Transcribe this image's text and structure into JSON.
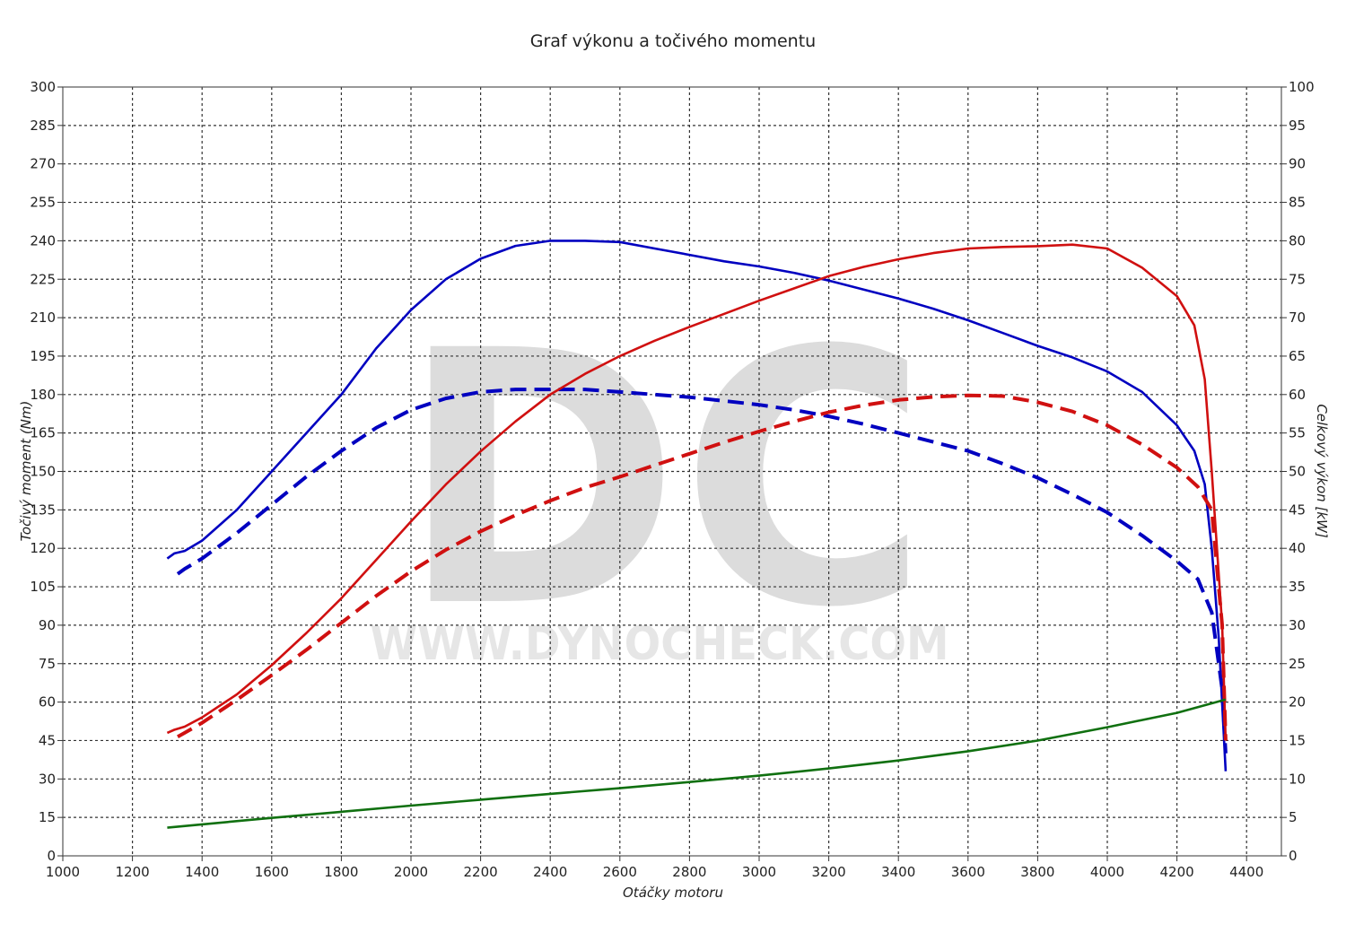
{
  "chart_data": {
    "type": "line",
    "title": "Graf výkonu a točivého momentu",
    "xlabel": "Otáčky motoru",
    "ylabel_left": "Točivý moment (Nm)",
    "ylabel_right": "Celkový výkon [kW]",
    "xlim": [
      1000,
      4500
    ],
    "ylim_left": [
      0,
      300
    ],
    "ylim_right": [
      0,
      100
    ],
    "x_ticks": [
      1000,
      1200,
      1400,
      1600,
      1800,
      2000,
      2200,
      2400,
      2600,
      2800,
      3000,
      3200,
      3400,
      3600,
      3800,
      4000,
      4200,
      4400
    ],
    "y_left_ticks": [
      0,
      15,
      30,
      45,
      60,
      75,
      90,
      105,
      120,
      135,
      150,
      165,
      180,
      195,
      210,
      225,
      240,
      255,
      270,
      285,
      300
    ],
    "y_right_ticks": [
      0,
      5,
      10,
      15,
      20,
      25,
      30,
      35,
      40,
      45,
      50,
      55,
      60,
      65,
      70,
      75,
      80,
      85,
      90,
      95,
      100
    ],
    "grid": true,
    "watermark": {
      "letters": "DC",
      "url": "WWW.DYNOCHECK.COM"
    },
    "series": [
      {
        "axis": "left",
        "color": "#0000c0",
        "dash": "solid",
        "points": [
          [
            1300,
            116
          ],
          [
            1320,
            118
          ],
          [
            1350,
            119
          ],
          [
            1400,
            123
          ],
          [
            1500,
            135
          ],
          [
            1600,
            150
          ],
          [
            1700,
            165
          ],
          [
            1800,
            180
          ],
          [
            1900,
            198
          ],
          [
            2000,
            213
          ],
          [
            2100,
            225
          ],
          [
            2200,
            233
          ],
          [
            2300,
            238
          ],
          [
            2400,
            240
          ],
          [
            2500,
            240
          ],
          [
            2600,
            239.5
          ],
          [
            2700,
            237
          ],
          [
            2800,
            234.5
          ],
          [
            2900,
            232
          ],
          [
            3000,
            230
          ],
          [
            3100,
            227.5
          ],
          [
            3200,
            224.5
          ],
          [
            3300,
            221
          ],
          [
            3400,
            217.5
          ],
          [
            3500,
            213.5
          ],
          [
            3600,
            209
          ],
          [
            3700,
            204
          ],
          [
            3800,
            199
          ],
          [
            3900,
            194.5
          ],
          [
            4000,
            189
          ],
          [
            4100,
            181
          ],
          [
            4200,
            168
          ],
          [
            4250,
            158
          ],
          [
            4280,
            145
          ],
          [
            4300,
            120
          ],
          [
            4320,
            85
          ],
          [
            4340,
            33
          ]
        ]
      },
      {
        "axis": "left",
        "color": "#0000c0",
        "dash": "dashed",
        "points": [
          [
            1330,
            110
          ],
          [
            1350,
            112
          ],
          [
            1400,
            116
          ],
          [
            1500,
            126
          ],
          [
            1600,
            137
          ],
          [
            1700,
            148
          ],
          [
            1800,
            158
          ],
          [
            1900,
            167
          ],
          [
            2000,
            174
          ],
          [
            2100,
            178.5
          ],
          [
            2200,
            181
          ],
          [
            2300,
            182
          ],
          [
            2400,
            182
          ],
          [
            2500,
            182
          ],
          [
            2600,
            181
          ],
          [
            2700,
            180
          ],
          [
            2800,
            179
          ],
          [
            2900,
            177.5
          ],
          [
            3000,
            176
          ],
          [
            3100,
            174
          ],
          [
            3200,
            171.5
          ],
          [
            3300,
            168.5
          ],
          [
            3400,
            165
          ],
          [
            3500,
            161.5
          ],
          [
            3600,
            158
          ],
          [
            3700,
            153
          ],
          [
            3800,
            147.5
          ],
          [
            3900,
            141
          ],
          [
            4000,
            134
          ],
          [
            4100,
            125
          ],
          [
            4200,
            115
          ],
          [
            4260,
            108
          ],
          [
            4300,
            95
          ],
          [
            4330,
            65
          ],
          [
            4340,
            40
          ]
        ]
      },
      {
        "axis": "right",
        "color": "#d01010",
        "dash": "solid",
        "points": [
          [
            1300,
            16
          ],
          [
            1320,
            16.4
          ],
          [
            1350,
            16.8
          ],
          [
            1400,
            18
          ],
          [
            1500,
            21
          ],
          [
            1600,
            24.8
          ],
          [
            1700,
            29
          ],
          [
            1800,
            33.5
          ],
          [
            1900,
            38.5
          ],
          [
            2000,
            43.5
          ],
          [
            2100,
            48.3
          ],
          [
            2200,
            52.6
          ],
          [
            2300,
            56.5
          ],
          [
            2400,
            60
          ],
          [
            2500,
            62.7
          ],
          [
            2600,
            65
          ],
          [
            2700,
            67
          ],
          [
            2800,
            68.8
          ],
          [
            2900,
            70.5
          ],
          [
            3000,
            72.2
          ],
          [
            3100,
            73.8
          ],
          [
            3200,
            75.4
          ],
          [
            3300,
            76.6
          ],
          [
            3400,
            77.6
          ],
          [
            3500,
            78.4
          ],
          [
            3600,
            79
          ],
          [
            3700,
            79.2
          ],
          [
            3800,
            79.3
          ],
          [
            3900,
            79.5
          ],
          [
            4000,
            79
          ],
          [
            4100,
            76.5
          ],
          [
            4200,
            72.8
          ],
          [
            4250,
            69
          ],
          [
            4280,
            62
          ],
          [
            4300,
            50
          ],
          [
            4330,
            30
          ],
          [
            4340,
            15
          ]
        ]
      },
      {
        "axis": "right",
        "color": "#d01010",
        "dash": "dashed",
        "points": [
          [
            1330,
            15.5
          ],
          [
            1350,
            16
          ],
          [
            1400,
            17.3
          ],
          [
            1500,
            20.3
          ],
          [
            1600,
            23.5
          ],
          [
            1700,
            26.8
          ],
          [
            1800,
            30.3
          ],
          [
            1900,
            33.8
          ],
          [
            2000,
            37
          ],
          [
            2100,
            39.8
          ],
          [
            2200,
            42.2
          ],
          [
            2300,
            44.3
          ],
          [
            2400,
            46.2
          ],
          [
            2500,
            47.9
          ],
          [
            2600,
            49.3
          ],
          [
            2700,
            50.8
          ],
          [
            2800,
            52.3
          ],
          [
            2900,
            53.8
          ],
          [
            3000,
            55.2
          ],
          [
            3100,
            56.5
          ],
          [
            3200,
            57.7
          ],
          [
            3300,
            58.6
          ],
          [
            3400,
            59.3
          ],
          [
            3500,
            59.7
          ],
          [
            3600,
            59.9
          ],
          [
            3700,
            59.8
          ],
          [
            3800,
            59
          ],
          [
            3900,
            57.8
          ],
          [
            4000,
            56
          ],
          [
            4100,
            53.5
          ],
          [
            4200,
            50.5
          ],
          [
            4260,
            48
          ],
          [
            4300,
            45
          ],
          [
            4330,
            30
          ],
          [
            4340,
            15
          ]
        ]
      },
      {
        "axis": "left",
        "color": "#107010",
        "dash": "solid",
        "points": [
          [
            1300,
            11
          ],
          [
            1400,
            12.3
          ],
          [
            1600,
            14.8
          ],
          [
            1800,
            17.2
          ],
          [
            2000,
            19.6
          ],
          [
            2200,
            21.9
          ],
          [
            2400,
            24.2
          ],
          [
            2600,
            26.4
          ],
          [
            2800,
            28.8
          ],
          [
            3000,
            31.3
          ],
          [
            3200,
            34.1
          ],
          [
            3400,
            37.2
          ],
          [
            3600,
            40.8
          ],
          [
            3800,
            45
          ],
          [
            4000,
            50.2
          ],
          [
            4200,
            55.8
          ],
          [
            4340,
            61
          ]
        ]
      }
    ]
  }
}
